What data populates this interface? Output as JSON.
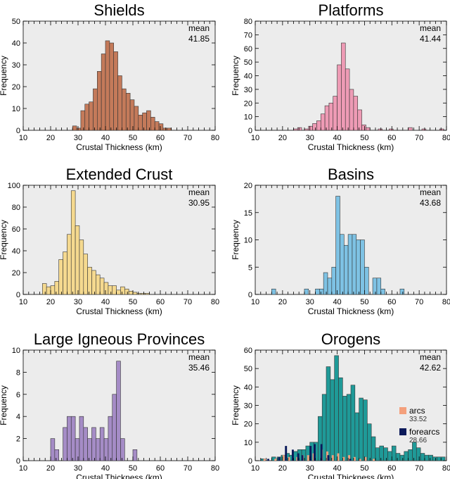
{
  "chart_data": [
    {
      "type": "bar",
      "title": "Shields",
      "xlabel": "Crustal Thickness (km)",
      "ylabel": "Frequency",
      "xlim": [
        10,
        80
      ],
      "ylim": [
        0,
        50
      ],
      "yticks": [
        0,
        10,
        20,
        30,
        40,
        50
      ],
      "xticks": [
        10,
        20,
        30,
        40,
        50,
        60,
        70,
        80
      ],
      "bin_width": 1.5,
      "color": "#c47a5a",
      "bins": [
        28,
        29.5,
        31,
        32.5,
        34,
        35.5,
        37,
        38.5,
        40,
        41.5,
        43,
        44.5,
        46,
        47.5,
        49,
        50.5,
        52,
        53.5,
        55,
        56.5,
        58,
        59.5,
        61,
        62.5
      ],
      "values": [
        2,
        1,
        9,
        12,
        13,
        19,
        27,
        35,
        41,
        40,
        36,
        25,
        19,
        17,
        14,
        11,
        7,
        8,
        9,
        6,
        4,
        3,
        1,
        1
      ],
      "mean_label": "mean",
      "mean_value": "41.85"
    },
    {
      "type": "bar",
      "title": "Platforms",
      "xlabel": "Crustal Thickness (km)",
      "ylabel": "Frequency",
      "xlim": [
        10,
        80
      ],
      "ylim": [
        0,
        80
      ],
      "yticks": [
        0,
        10,
        20,
        30,
        40,
        50,
        60,
        70,
        80
      ],
      "xticks": [
        10,
        20,
        30,
        40,
        50,
        60,
        70,
        80
      ],
      "bin_width": 1.5,
      "color": "#ee9bb5",
      "bins": [
        24,
        25.5,
        28,
        29.5,
        31,
        32.5,
        34,
        35.5,
        37,
        38.5,
        40,
        41.5,
        43,
        44.5,
        46,
        47.5,
        49,
        50.5,
        55,
        59,
        66,
        71,
        77.5
      ],
      "values": [
        1,
        2,
        1,
        3,
        5,
        7,
        12,
        18,
        20,
        25,
        48,
        64,
        45,
        30,
        25,
        15,
        4,
        2,
        1,
        1,
        2,
        1,
        1
      ],
      "mean_label": "mean",
      "mean_value": "41.44"
    },
    {
      "type": "bar",
      "title": "Extended Crust",
      "xlabel": "Crustal Thickness (km)",
      "ylabel": "Frequency",
      "xlim": [
        10,
        80
      ],
      "ylim": [
        0,
        100
      ],
      "yticks": [
        0,
        20,
        40,
        60,
        80,
        100
      ],
      "xticks": [
        10,
        20,
        30,
        40,
        50,
        60,
        70,
        80
      ],
      "bin_width": 1.5,
      "color": "#f5d98f",
      "bins": [
        17,
        18.5,
        20,
        21.5,
        23,
        24.5,
        26,
        27.5,
        29,
        30.5,
        32,
        33.5,
        35,
        36.5,
        38,
        39.5,
        41,
        42.5,
        44,
        45.5,
        47,
        48.5,
        50,
        51.5,
        53,
        54.5
      ],
      "values": [
        10,
        7,
        8,
        12,
        32,
        39,
        55,
        95,
        63,
        50,
        37,
        25,
        22,
        18,
        15,
        11,
        8,
        8,
        4,
        7,
        5,
        3,
        2,
        1,
        1,
        1
      ],
      "mean_label": "mean",
      "mean_value": "30.95"
    },
    {
      "type": "bar",
      "title": "Basins",
      "xlabel": "Crustal Thickness (km)",
      "ylabel": "Frequency",
      "xlim": [
        10,
        80
      ],
      "ylim": [
        0,
        20
      ],
      "yticks": [
        0,
        5,
        10,
        15,
        20
      ],
      "xticks": [
        10,
        20,
        30,
        40,
        50,
        60,
        70,
        80
      ],
      "bin_width": 1.5,
      "color": "#7ec2e4",
      "bins": [
        16,
        28,
        32,
        33.5,
        35,
        36.5,
        38,
        39.5,
        41,
        42.5,
        44,
        45.5,
        47,
        48.5,
        50,
        53,
        54.5,
        56,
        63
      ],
      "values": [
        1,
        1,
        1,
        1,
        4,
        3,
        5,
        18,
        11,
        9,
        11,
        11,
        10,
        10,
        5,
        3,
        3,
        1,
        1
      ],
      "mean_label": "mean",
      "mean_value": "43.68"
    },
    {
      "type": "bar",
      "title": "Large Igneous Provinces",
      "xlabel": "Crustal Thickness (km)",
      "ylabel": "Frequency",
      "xlim": [
        10,
        80
      ],
      "ylim": [
        0,
        10
      ],
      "yticks": [
        0,
        2,
        4,
        6,
        8,
        10
      ],
      "xticks": [
        10,
        20,
        30,
        40,
        50,
        60,
        70,
        80
      ],
      "bin_width": 1.5,
      "color": "#a58cc6",
      "bins": [
        20,
        21.5,
        24.5,
        26,
        27.5,
        29,
        30.5,
        32,
        33.5,
        35,
        36.5,
        38,
        39.5,
        41,
        42.5,
        44,
        45.5,
        50
      ],
      "values": [
        2,
        1,
        3,
        4,
        4,
        2,
        4,
        3,
        2,
        3,
        2,
        3,
        2,
        4,
        6,
        9,
        2,
        1
      ],
      "mean_label": "mean",
      "mean_value": "35.46"
    },
    {
      "type": "bar",
      "title": "Orogens",
      "xlabel": "Crustal Thickness (km)",
      "ylabel": "Frequency",
      "xlim": [
        10,
        80
      ],
      "ylim": [
        0,
        60
      ],
      "yticks": [
        0,
        10,
        20,
        30,
        40,
        50,
        60
      ],
      "xticks": [
        10,
        20,
        30,
        40,
        50,
        60,
        70,
        80
      ],
      "bin_width": 1.5,
      "color": "#1f9a98",
      "bins": [
        12,
        16,
        18,
        19.5,
        21,
        22.5,
        24,
        25.5,
        27,
        28.5,
        30,
        31.5,
        33,
        34.5,
        36,
        37.5,
        39,
        40.5,
        42,
        43.5,
        45,
        46.5,
        48,
        49.5,
        51,
        52.5,
        54,
        55.5,
        57,
        58.5,
        60,
        61.5,
        63,
        64.5,
        66,
        67.5,
        69,
        70.5,
        72,
        73.5,
        75,
        76.5,
        78
      ],
      "values": [
        1,
        2,
        2,
        3,
        4,
        3,
        5,
        6,
        6,
        8,
        10,
        10,
        24,
        36,
        51,
        44,
        57,
        45,
        35,
        36,
        41,
        26,
        34,
        33,
        20,
        13,
        7,
        8,
        7,
        5,
        8,
        4,
        3,
        5,
        6,
        10,
        7,
        4,
        3,
        3,
        2,
        2,
        2
      ],
      "mean_label": "mean",
      "mean_value": "42.62",
      "overlays": [
        {
          "name": "arcs",
          "mean": "33.52",
          "color": "#f4a07c",
          "bins": [
            13,
            17,
            20,
            22,
            25,
            27,
            29,
            31,
            34,
            36,
            38,
            40,
            42,
            44,
            46,
            48,
            50,
            53
          ],
          "values": [
            1,
            1,
            3,
            2,
            2,
            3,
            3,
            4,
            6,
            5,
            3,
            4,
            2,
            3,
            2,
            1,
            2,
            1
          ]
        },
        {
          "name": "forearcs",
          "mean": "28.66",
          "color": "#0b1a5a",
          "bins": [
            14,
            18,
            20.5,
            23,
            25,
            26.5,
            29.5,
            31,
            33.5,
            36,
            44
          ],
          "values": [
            1,
            2,
            8,
            6,
            4,
            3,
            8,
            9,
            9,
            3,
            1
          ]
        }
      ]
    }
  ]
}
